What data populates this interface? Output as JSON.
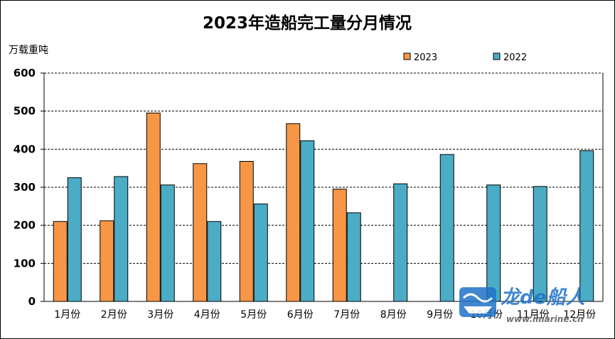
{
  "chart_data": {
    "type": "bar",
    "title": "2023年造船完工量分月情况",
    "ylabel": "万载重吨",
    "xlabel": "",
    "ylim": [
      0,
      600
    ],
    "yticks": [
      0,
      100,
      200,
      300,
      400,
      500,
      600
    ],
    "grid": true,
    "legend_position": "top-right",
    "categories": [
      "1月份",
      "2月份",
      "3月份",
      "4月份",
      "5月份",
      "6月份",
      "7月份",
      "8月份",
      "9月份",
      "10月份",
      "11月份",
      "12月份"
    ],
    "series": [
      {
        "name": "2023",
        "color": "#F79646",
        "values": [
          210,
          212,
          495,
          362,
          368,
          467,
          295,
          null,
          null,
          null,
          null,
          null
        ]
      },
      {
        "name": "2022",
        "color": "#4BACC6",
        "values": [
          325,
          328,
          306,
          210,
          256,
          422,
          233,
          309,
          386,
          306,
          302,
          396
        ]
      }
    ]
  },
  "watermark": {
    "brand": "龙de船人",
    "url": "www.imarine.cn"
  }
}
